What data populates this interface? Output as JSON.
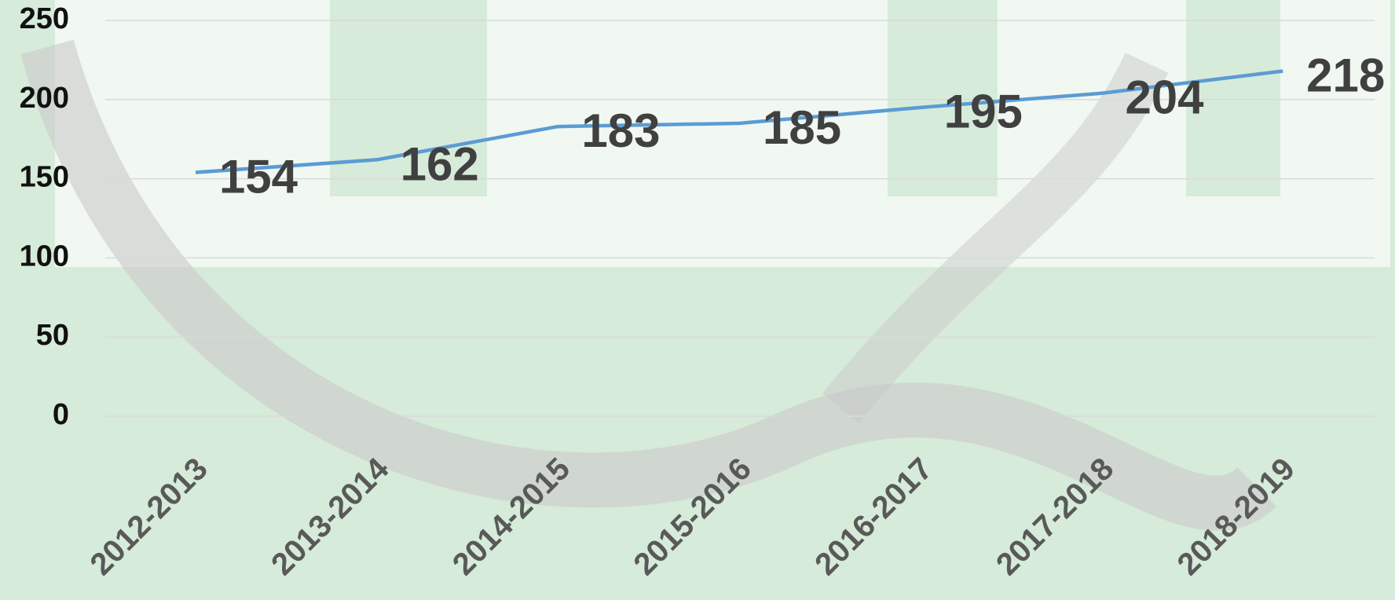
{
  "chart_data": {
    "type": "line",
    "categories": [
      "2012-2013",
      "2013-2014",
      "2014-2015",
      "2015-2016",
      "2016-2017",
      "2017-2018",
      "2018-2019"
    ],
    "values": [
      154,
      162,
      183,
      185,
      195,
      204,
      218
    ],
    "color": "#5b9bd5",
    "ylim": [
      0,
      250
    ],
    "yticks": [
      0,
      50,
      100,
      150,
      200,
      250
    ],
    "grid": true
  }
}
